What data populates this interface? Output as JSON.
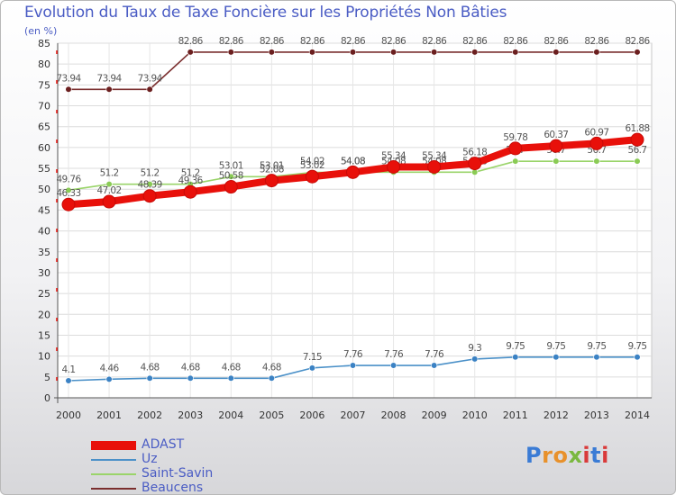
{
  "header": {
    "title": "Evolution du Taux de Taxe Foncière sur les Propriétés Non Bâties",
    "subtitle": "(en %)"
  },
  "logo": {
    "text": "Proxiti",
    "colors": [
      "#3a7bd5",
      "#e8912b",
      "#7ab83f",
      "#d93a3a"
    ]
  },
  "chart_data": {
    "type": "line",
    "title": "Evolution du Taux de Taxe Foncière sur les Propriétés Non Bâties",
    "ylabel": "(en %)",
    "xlabel": "",
    "x": [
      "2000",
      "2001",
      "2002",
      "2003",
      "2004",
      "2005",
      "2006",
      "2007",
      "2008",
      "2009",
      "2010",
      "2011",
      "2012",
      "2013",
      "2014"
    ],
    "ylim": [
      0,
      85
    ],
    "yticks": [
      0,
      5,
      10,
      15,
      20,
      25,
      30,
      35,
      40,
      45,
      50,
      55,
      60,
      65,
      70,
      75,
      80,
      85
    ],
    "grid": true,
    "legend": "bottom-left",
    "series": [
      {
        "name": "Beaucens",
        "color": "#7a2e2e",
        "values": [
          73.94,
          73.94,
          73.94,
          82.86,
          82.86,
          82.86,
          82.86,
          82.86,
          82.86,
          82.86,
          82.86,
          82.86,
          82.86,
          82.86,
          82.86
        ],
        "labels": [
          "73.94",
          "73.94",
          "73.94",
          "82.86",
          "82.86",
          "82.86",
          "82.86",
          "82.86",
          "82.86",
          "82.86",
          "82.86",
          "82.86",
          "82.86",
          "82.86",
          "82.86"
        ]
      },
      {
        "name": "Saint-Savin",
        "color": "#9ad46a",
        "values": [
          49.76,
          51.2,
          51.2,
          51.2,
          53.01,
          53.01,
          54.02,
          54.08,
          54.08,
          54.08,
          54.08,
          56.7,
          56.7,
          56.7,
          56.7
        ],
        "labels": [
          "49.76",
          "51.2",
          "51.2",
          "51.2",
          "53.01",
          "53.01",
          "54.02",
          "54.08",
          "54.08",
          "54.08",
          "54.08",
          "56.7",
          "56.7",
          "56.7",
          "56.7"
        ]
      },
      {
        "name": "Uz",
        "color": "#4a90c8",
        "values": [
          4.1,
          4.46,
          4.68,
          4.68,
          4.68,
          4.68,
          7.15,
          7.76,
          7.76,
          7.76,
          9.3,
          9.75,
          9.75,
          9.75,
          9.75
        ],
        "labels": [
          "4.1",
          "4.46",
          "4.68",
          "4.68",
          "4.68",
          "4.68",
          "7.15",
          "7.76",
          "7.76",
          "7.76",
          "9.3",
          "9.75",
          "9.75",
          "9.75",
          "9.75"
        ]
      },
      {
        "name": "ADAST",
        "color": "#e8100a",
        "values": [
          46.33,
          47.02,
          48.39,
          49.36,
          50.58,
          52.08,
          53.02,
          54.08,
          55.34,
          55.34,
          56.18,
          59.78,
          60.37,
          60.97,
          61.88
        ],
        "labels": [
          "46.33",
          "47.02",
          "48.39",
          "49.36",
          "50.58",
          "52.08",
          "53.02",
          "54.08",
          "55.34",
          "55.34",
          "56.18",
          "59.78",
          "60.37",
          "60.97",
          "61.88"
        ]
      }
    ]
  },
  "legend": {
    "items": [
      {
        "label": "ADAST",
        "color": "#e8100a"
      },
      {
        "label": "Uz",
        "color": "#4a90c8"
      },
      {
        "label": "Saint-Savin",
        "color": "#9ad46a"
      },
      {
        "label": "Beaucens",
        "color": "#7a2e2e"
      }
    ]
  }
}
